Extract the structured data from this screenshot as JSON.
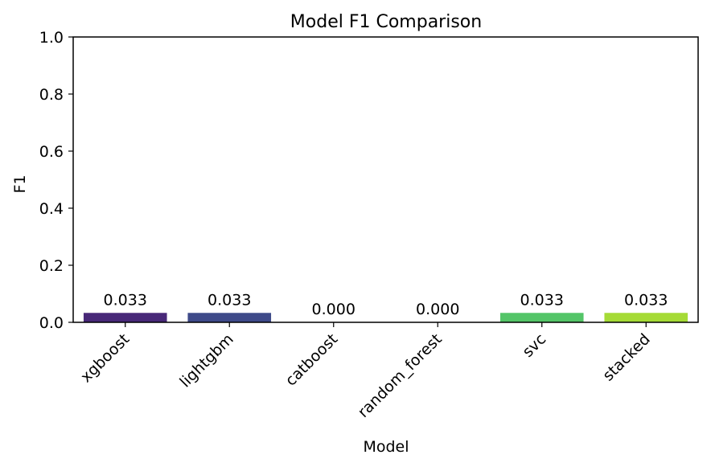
{
  "chart_data": {
    "type": "bar",
    "title": "Model F1 Comparison",
    "xlabel": "Model",
    "ylabel": "F1",
    "categories": [
      "xgboost",
      "lightgbm",
      "catboost",
      "random_forest",
      "svc",
      "stacked"
    ],
    "values": [
      0.033,
      0.033,
      0.0,
      0.0,
      0.033,
      0.033
    ],
    "value_labels": [
      "0.033",
      "0.033",
      "0.000",
      "0.000",
      "0.033",
      "0.033"
    ],
    "colors": [
      "#482878",
      "#3e4a89",
      "#2a788e",
      "#1f9e89",
      "#54c568",
      "#a5db36"
    ],
    "ylim": [
      0,
      1.0
    ],
    "yticks": [
      0.0,
      0.2,
      0.4,
      0.6,
      0.8,
      1.0
    ],
    "ytick_labels": [
      "0.0",
      "0.2",
      "0.4",
      "0.6",
      "0.8",
      "1.0"
    ],
    "grid": false,
    "legend": "none"
  }
}
